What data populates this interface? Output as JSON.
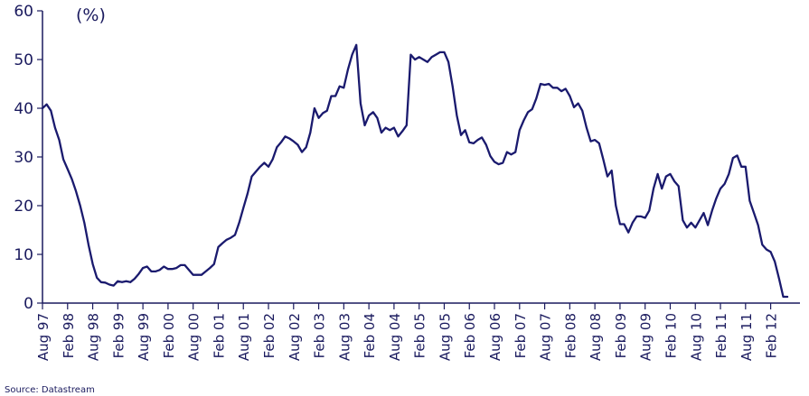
{
  "chart_data": {
    "type": "line",
    "unit_label": "(%)",
    "source": "Source: Datastream",
    "ylim": [
      0,
      60
    ],
    "y_ticks": [
      0,
      10,
      20,
      30,
      40,
      50,
      60
    ],
    "x_range": [
      "1997-08",
      "2012-09"
    ],
    "x_ticks": [
      "Aug 97",
      "Feb 98",
      "Aug 98",
      "Feb 99",
      "Aug 99",
      "Feb 00",
      "Aug 00",
      "Feb 01",
      "Aug 01",
      "Feb 02",
      "Aug 02",
      "Feb 03",
      "Aug 03",
      "Feb 04",
      "Aug 04",
      "Feb 05",
      "Aug 05",
      "Feb 06",
      "Aug 06",
      "Feb 07",
      "Aug 07",
      "Feb 08",
      "Aug 08",
      "Feb 09",
      "Aug 09",
      "Feb 10",
      "Aug 10",
      "Feb 11",
      "Aug 11",
      "Feb 12"
    ],
    "grid": false,
    "legend": "none",
    "colors": {
      "line": "#1a1a6e",
      "axis": "#1a1a5e",
      "text": "#1a1a5e"
    },
    "series": [
      {
        "values": [
          [
            "1997-08",
            40
          ],
          [
            "1997-09",
            40.8
          ],
          [
            "1997-10",
            39.5
          ],
          [
            "1997-11",
            36
          ],
          [
            "1997-12",
            33.5
          ],
          [
            "1998-01",
            29.5
          ],
          [
            "1998-02",
            27.5
          ],
          [
            "1998-03",
            25.5
          ],
          [
            "1998-04",
            23
          ],
          [
            "1998-05",
            20
          ],
          [
            "1998-06",
            16.5
          ],
          [
            "1998-07",
            12
          ],
          [
            "1998-08",
            8
          ],
          [
            "1998-09",
            5.2
          ],
          [
            "1998-10",
            4.3
          ],
          [
            "1998-11",
            4.2
          ],
          [
            "1998-12",
            3.8
          ],
          [
            "1999-01",
            3.6
          ],
          [
            "1999-02",
            4.5
          ],
          [
            "1999-03",
            4.3
          ],
          [
            "1999-04",
            4.5
          ],
          [
            "1999-05",
            4.3
          ],
          [
            "1999-06",
            5
          ],
          [
            "1999-07",
            6
          ],
          [
            "1999-08",
            7.2
          ],
          [
            "1999-09",
            7.5
          ],
          [
            "1999-10",
            6.5
          ],
          [
            "1999-11",
            6.5
          ],
          [
            "1999-12",
            6.8
          ],
          [
            "2000-01",
            7.5
          ],
          [
            "2000-02",
            7
          ],
          [
            "2000-03",
            7
          ],
          [
            "2000-04",
            7.2
          ],
          [
            "2000-05",
            7.8
          ],
          [
            "2000-06",
            7.8
          ],
          [
            "2000-07",
            6.8
          ],
          [
            "2000-08",
            5.8
          ],
          [
            "2000-09",
            5.8
          ],
          [
            "2000-10",
            5.8
          ],
          [
            "2000-11",
            6.5
          ],
          [
            "2000-12",
            7.2
          ],
          [
            "2001-01",
            8
          ],
          [
            "2001-02",
            11.5
          ],
          [
            "2001-03",
            12.3
          ],
          [
            "2001-04",
            13
          ],
          [
            "2001-05",
            13.4
          ],
          [
            "2001-06",
            14
          ],
          [
            "2001-07",
            16.5
          ],
          [
            "2001-08",
            19.5
          ],
          [
            "2001-09",
            22.5
          ],
          [
            "2001-10",
            26
          ],
          [
            "2001-11",
            27
          ],
          [
            "2001-12",
            28
          ],
          [
            "2002-01",
            28.8
          ],
          [
            "2002-02",
            28
          ],
          [
            "2002-03",
            29.5
          ],
          [
            "2002-04",
            32
          ],
          [
            "2002-05",
            33
          ],
          [
            "2002-06",
            34.2
          ],
          [
            "2002-07",
            33.8
          ],
          [
            "2002-08",
            33.2
          ],
          [
            "2002-09",
            32.5
          ],
          [
            "2002-10",
            31
          ],
          [
            "2002-11",
            32
          ],
          [
            "2002-12",
            35
          ],
          [
            "2003-01",
            40
          ],
          [
            "2003-02",
            38
          ],
          [
            "2003-03",
            39
          ],
          [
            "2003-04",
            39.5
          ],
          [
            "2003-05",
            42.5
          ],
          [
            "2003-06",
            42.5
          ],
          [
            "2003-07",
            44.5
          ],
          [
            "2003-08",
            44.2
          ],
          [
            "2003-09",
            48
          ],
          [
            "2003-10",
            51
          ],
          [
            "2003-11",
            53
          ],
          [
            "2003-12",
            41
          ],
          [
            "2004-01",
            36.5
          ],
          [
            "2004-02",
            38.5
          ],
          [
            "2004-03",
            39.2
          ],
          [
            "2004-04",
            38
          ],
          [
            "2004-05",
            35
          ],
          [
            "2004-06",
            36
          ],
          [
            "2004-07",
            35.5
          ],
          [
            "2004-08",
            36
          ],
          [
            "2004-09",
            34.2
          ],
          [
            "2004-10",
            35.3
          ],
          [
            "2004-11",
            36.5
          ],
          [
            "2004-12",
            51
          ],
          [
            "2005-01",
            50
          ],
          [
            "2005-02",
            50.5
          ],
          [
            "2005-03",
            50
          ],
          [
            "2005-04",
            49.5
          ],
          [
            "2005-05",
            50.5
          ],
          [
            "2005-06",
            51
          ],
          [
            "2005-07",
            51.5
          ],
          [
            "2005-08",
            51.5
          ],
          [
            "2005-09",
            49.5
          ],
          [
            "2005-10",
            44.5
          ],
          [
            "2005-11",
            38.5
          ],
          [
            "2005-12",
            34.5
          ],
          [
            "2006-01",
            35.5
          ],
          [
            "2006-02",
            33
          ],
          [
            "2006-03",
            32.8
          ],
          [
            "2006-04",
            33.5
          ],
          [
            "2006-05",
            34
          ],
          [
            "2006-06",
            32.5
          ],
          [
            "2006-07",
            30.2
          ],
          [
            "2006-08",
            29
          ],
          [
            "2006-09",
            28.5
          ],
          [
            "2006-10",
            28.8
          ],
          [
            "2006-11",
            31
          ],
          [
            "2006-12",
            30.5
          ],
          [
            "2007-01",
            31
          ],
          [
            "2007-02",
            35.5
          ],
          [
            "2007-03",
            37.5
          ],
          [
            "2007-04",
            39.2
          ],
          [
            "2007-05",
            39.8
          ],
          [
            "2007-06",
            42
          ],
          [
            "2007-07",
            45
          ],
          [
            "2007-08",
            44.8
          ],
          [
            "2007-09",
            45
          ],
          [
            "2007-10",
            44.2
          ],
          [
            "2007-11",
            44.2
          ],
          [
            "2007-12",
            43.5
          ],
          [
            "2008-01",
            44
          ],
          [
            "2008-02",
            42.5
          ],
          [
            "2008-03",
            40.2
          ],
          [
            "2008-04",
            41
          ],
          [
            "2008-05",
            39.5
          ],
          [
            "2008-06",
            36
          ],
          [
            "2008-07",
            33.2
          ],
          [
            "2008-08",
            33.5
          ],
          [
            "2008-09",
            32.8
          ],
          [
            "2008-10",
            29.5
          ],
          [
            "2008-11",
            26
          ],
          [
            "2008-12",
            27.2
          ],
          [
            "2009-01",
            20
          ],
          [
            "2009-02",
            16.2
          ],
          [
            "2009-03",
            16.2
          ],
          [
            "2009-04",
            14.5
          ],
          [
            "2009-05",
            16.5
          ],
          [
            "2009-06",
            17.8
          ],
          [
            "2009-07",
            17.8
          ],
          [
            "2009-08",
            17.5
          ],
          [
            "2009-09",
            19
          ],
          [
            "2009-10",
            23.5
          ],
          [
            "2009-11",
            26.5
          ],
          [
            "2009-12",
            23.5
          ],
          [
            "2010-01",
            26
          ],
          [
            "2010-02",
            26.5
          ],
          [
            "2010-03",
            25
          ],
          [
            "2010-04",
            24
          ],
          [
            "2010-05",
            17
          ],
          [
            "2010-06",
            15.5
          ],
          [
            "2010-07",
            16.5
          ],
          [
            "2010-08",
            15.5
          ],
          [
            "2010-09",
            17
          ],
          [
            "2010-10",
            18.5
          ],
          [
            "2010-11",
            16
          ],
          [
            "2010-12",
            19
          ],
          [
            "2011-01",
            21.5
          ],
          [
            "2011-02",
            23.5
          ],
          [
            "2011-03",
            24.5
          ],
          [
            "2011-04",
            26.5
          ],
          [
            "2011-05",
            29.8
          ],
          [
            "2011-06",
            30.3
          ],
          [
            "2011-07",
            28
          ],
          [
            "2011-08",
            28
          ],
          [
            "2011-09",
            21
          ],
          [
            "2011-10",
            18.5
          ],
          [
            "2011-11",
            16
          ],
          [
            "2011-12",
            12
          ],
          [
            "2012-01",
            11
          ],
          [
            "2012-02",
            10.5
          ],
          [
            "2012-03",
            8.5
          ],
          [
            "2012-04",
            5
          ],
          [
            "2012-05",
            1.3
          ],
          [
            "2012-06",
            1.3
          ]
        ]
      }
    ]
  }
}
